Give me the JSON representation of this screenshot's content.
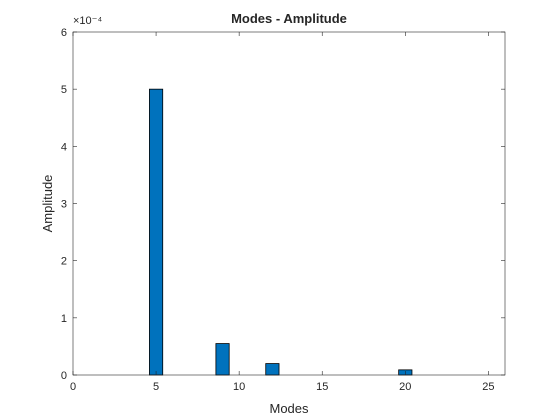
{
  "chart_data": {
    "type": "bar",
    "title": "Modes - Amplitude",
    "xlabel": "Modes",
    "ylabel": "Amplitude",
    "y_exponent_label": "×10⁻⁴",
    "xlim": [
      0,
      26
    ],
    "ylim": [
      0,
      6
    ],
    "x_ticks": [
      0,
      5,
      10,
      15,
      20,
      25
    ],
    "y_ticks": [
      0,
      1,
      2,
      3,
      4,
      5,
      6
    ],
    "x": [
      5,
      9,
      12,
      20
    ],
    "values": [
      5.0,
      0.55,
      0.2,
      0.09
    ],
    "value_scale": 0.0001,
    "bar_color": "#0072BD",
    "bar_edge_color": "#000000",
    "grid": false,
    "box": true
  }
}
